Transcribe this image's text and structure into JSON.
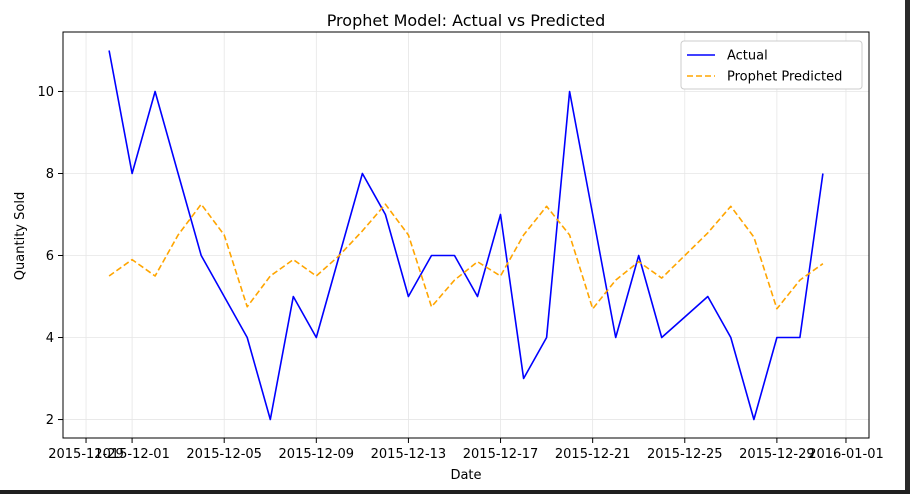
{
  "chart_data": {
    "type": "line",
    "title": "Prophet Model: Actual vs Predicted",
    "xlabel": "Date",
    "ylabel": "Quantity Sold",
    "x_tick_labels": [
      "2015-11-29",
      "2015-12-01",
      "2015-12-05",
      "2015-12-09",
      "2015-12-13",
      "2015-12-17",
      "2015-12-21",
      "2015-12-25",
      "2015-12-29",
      "2016-01-01"
    ],
    "x_ticks": [
      "2015-11-29",
      "2015-12-01",
      "2015-12-05",
      "2015-12-09",
      "2015-12-13",
      "2015-12-17",
      "2015-12-21",
      "2015-12-25",
      "2015-12-29",
      "2016-01-01"
    ],
    "xlim": [
      "2015-11-28",
      "2016-01-02"
    ],
    "y_ticks": [
      2,
      4,
      6,
      8,
      10
    ],
    "ylim": [
      1.55,
      11.45
    ],
    "grid": true,
    "legend": "top-right",
    "x": [
      "2015-11-30",
      "2015-12-01",
      "2015-12-02",
      "2015-12-03",
      "2015-12-04",
      "2015-12-05",
      "2015-12-06",
      "2015-12-07",
      "2015-12-08",
      "2015-12-09",
      "2015-12-10",
      "2015-12-11",
      "2015-12-12",
      "2015-12-13",
      "2015-12-14",
      "2015-12-15",
      "2015-12-16",
      "2015-12-17",
      "2015-12-18",
      "2015-12-19",
      "2015-12-20",
      "2015-12-21",
      "2015-12-22",
      "2015-12-23",
      "2015-12-24",
      "2015-12-25",
      "2015-12-26",
      "2015-12-27",
      "2015-12-28",
      "2015-12-29",
      "2015-12-30",
      "2015-12-31"
    ],
    "series": [
      {
        "name": "Actual",
        "color": "#0000ff",
        "style": "solid",
        "values": [
          11,
          8,
          10,
          8,
          6,
          5,
          4,
          2,
          5,
          4,
          6,
          8,
          7,
          5,
          6,
          6,
          5,
          7,
          3,
          4,
          10,
          7,
          4,
          6,
          4,
          4.5,
          5,
          4,
          2,
          4,
          4,
          8
        ]
      },
      {
        "name": "Prophet Predicted",
        "color": "#ffa500",
        "style": "dashed",
        "values": [
          5.5,
          5.9,
          5.5,
          6.5,
          7.25,
          6.5,
          4.75,
          5.5,
          5.9,
          5.5,
          6.0,
          6.6,
          7.25,
          6.5,
          4.75,
          5.4,
          5.85,
          5.5,
          6.5,
          7.2,
          6.5,
          4.7,
          5.4,
          5.85,
          5.45,
          6.0,
          6.55,
          7.2,
          6.45,
          4.7,
          5.4,
          5.8
        ]
      }
    ]
  }
}
